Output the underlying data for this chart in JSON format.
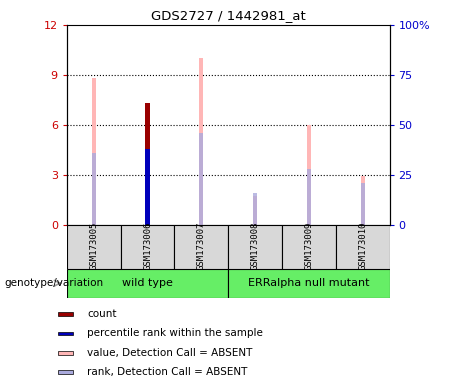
{
  "title": "GDS2727 / 1442981_at",
  "samples": [
    "GSM173005",
    "GSM173006",
    "GSM173007",
    "GSM173008",
    "GSM173009",
    "GSM173010"
  ],
  "ylim_left": [
    0,
    12
  ],
  "ylim_right": [
    0,
    100
  ],
  "yticks_left": [
    0,
    3,
    6,
    9,
    12
  ],
  "ytick_labels_left": [
    "0",
    "3",
    "6",
    "9",
    "12"
  ],
  "yticks_right": [
    0,
    25,
    50,
    75,
    100
  ],
  "ytick_labels_right": [
    "0",
    "25",
    "50",
    "75",
    "100%"
  ],
  "pink_bars": [
    8.8,
    7.3,
    10.0,
    1.7,
    6.0,
    2.9
  ],
  "lightblue_bars_pct": [
    36,
    38,
    46,
    16,
    28,
    21
  ],
  "red_bar_idx": 1,
  "red_bar_val": 7.3,
  "blue_bar_idx": 1,
  "blue_bar_val_pct": 38,
  "pink_color": "#FFB6B6",
  "red_color": "#990000",
  "blue_color": "#0000BB",
  "lightblue_color": "#AAAADD",
  "bg_color": "#D8D8D8",
  "group_color": "#66EE66",
  "left_tick_color": "#CC0000",
  "right_tick_color": "#0000CC",
  "wild_type_indices": [
    0,
    1,
    2
  ],
  "mutant_indices": [
    3,
    4,
    5
  ],
  "legend_items": [
    {
      "label": "count",
      "color": "#990000"
    },
    {
      "label": "percentile rank within the sample",
      "color": "#0000BB"
    },
    {
      "label": "value, Detection Call = ABSENT",
      "color": "#FFB6B6"
    },
    {
      "label": "rank, Detection Call = ABSENT",
      "color": "#AAAADD"
    }
  ]
}
